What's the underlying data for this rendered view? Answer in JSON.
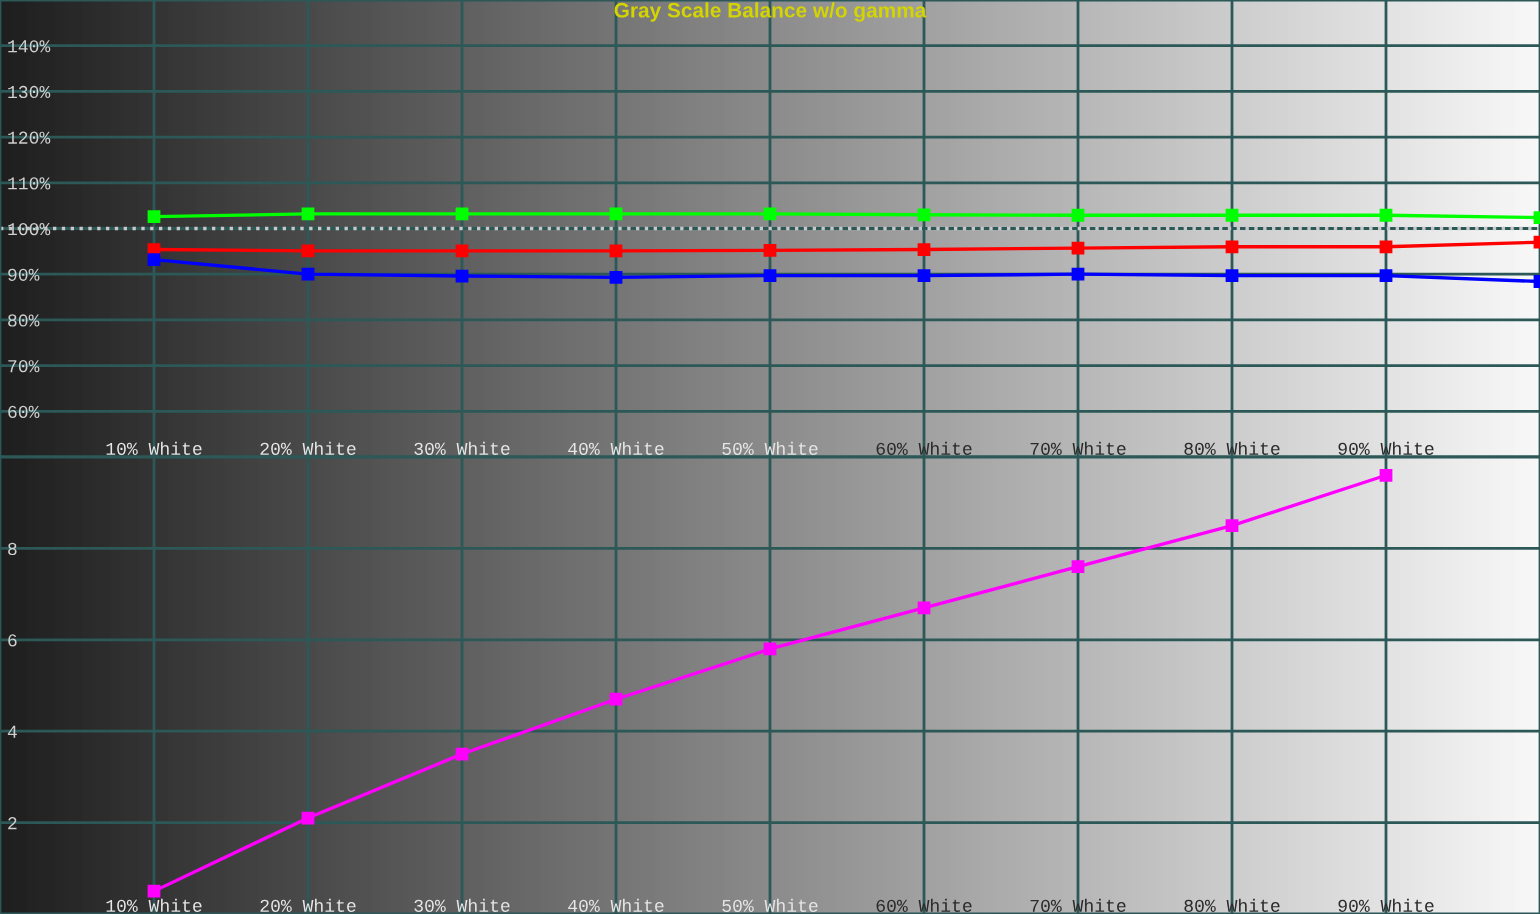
{
  "chart_data": [
    {
      "type": "line",
      "title": "Gray Scale Balance w/o gamma",
      "x": [
        10,
        20,
        30,
        40,
        50,
        60,
        70,
        80,
        90,
        100
      ],
      "series": [
        {
          "color": "#ff0000",
          "values": [
            95.4,
            95.1,
            95.1,
            95.1,
            95.2,
            95.4,
            95.7,
            96.0,
            96.0,
            97.0
          ]
        },
        {
          "color": "#00ff00",
          "values": [
            102.6,
            103.2,
            103.2,
            103.2,
            103.2,
            103.0,
            102.9,
            102.9,
            102.9,
            102.4
          ]
        },
        {
          "color": "#0000ff",
          "values": [
            93.2,
            90.0,
            89.6,
            89.3,
            89.7,
            89.7,
            90.0,
            89.7,
            89.7,
            88.4
          ]
        }
      ],
      "xlim": [
        0,
        100
      ],
      "xticks": [
        {
          "value": 10,
          "label": "10% White"
        },
        {
          "value": 20,
          "label": "20% White"
        },
        {
          "value": 30,
          "label": "30% White"
        },
        {
          "value": 40,
          "label": "40% White"
        },
        {
          "value": 50,
          "label": "50% White"
        },
        {
          "value": 60,
          "label": "60% White"
        },
        {
          "value": 70,
          "label": "70% White"
        },
        {
          "value": 80,
          "label": "80% White"
        },
        {
          "value": 90,
          "label": "90% White"
        }
      ],
      "ylim": [
        50,
        150
      ],
      "yticks": [
        {
          "value": 60,
          "label": "60%"
        },
        {
          "value": 70,
          "label": "70%"
        },
        {
          "value": 80,
          "label": "80%"
        },
        {
          "value": 90,
          "label": "90%"
        },
        {
          "value": 100,
          "label": "100%"
        },
        {
          "value": 110,
          "label": "110%"
        },
        {
          "value": 120,
          "label": "120%"
        },
        {
          "value": 130,
          "label": "130%"
        },
        {
          "value": 140,
          "label": "140%"
        }
      ],
      "ref_lines": [
        {
          "axis": "y",
          "value": 100,
          "color": "#c8c8c8",
          "line_style": "dotted"
        }
      ],
      "grid": true,
      "marker": "square",
      "line_style": "solid"
    },
    {
      "type": "line",
      "x": [
        10,
        20,
        30,
        40,
        50,
        60,
        70,
        80,
        90
      ],
      "series": [
        {
          "color": "#ff00ff",
          "values": [
            0.5,
            2.1,
            3.5,
            4.7,
            5.8,
            6.7,
            7.6,
            8.5,
            9.6
          ]
        }
      ],
      "xlim": [
        0,
        100
      ],
      "xticks": [
        {
          "value": 10,
          "label": "10% White"
        },
        {
          "value": 20,
          "label": "20% White"
        },
        {
          "value": 30,
          "label": "30% White"
        },
        {
          "value": 40,
          "label": "40% White"
        },
        {
          "value": 50,
          "label": "50% White"
        },
        {
          "value": 60,
          "label": "60% White"
        },
        {
          "value": 70,
          "label": "70% White"
        },
        {
          "value": 80,
          "label": "80% White"
        },
        {
          "value": 90,
          "label": "90% White"
        }
      ],
      "ylim": [
        0,
        10
      ],
      "yticks": [
        2,
        4,
        6,
        8
      ],
      "grid": true,
      "marker": "square",
      "line_style": "solid"
    }
  ]
}
